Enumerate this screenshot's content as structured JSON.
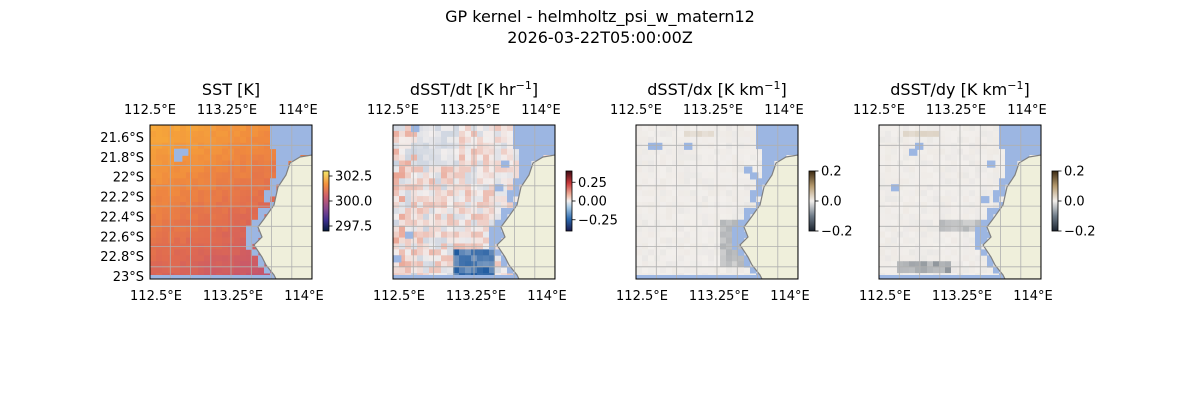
{
  "figure": {
    "title_line1": "GP kernel - helmholtz_psi_w_matern12",
    "title_line2": "2026-03-22T05:00:00Z"
  },
  "colors": {
    "land": "#efefdb",
    "water_mask": "#9cb6e2",
    "coastline": "#808080",
    "gridline": "#b0b0b0"
  },
  "chart_data": [
    {
      "type": "heatmap",
      "title": "SST [K]",
      "title_unit_sup": "",
      "xtick_labels": [
        "112.5°E",
        "113.25°E",
        "114°E"
      ],
      "ytick_labels": [
        "21.6°S",
        "21.8°S",
        "22°S",
        "22.2°S",
        "22.4°S",
        "22.6°S",
        "22.8°S",
        "23°S"
      ],
      "colorbar": {
        "cmap": "thermal",
        "range": [
          297.0,
          303.0
        ],
        "ticks": [
          302.5,
          300.0,
          297.5
        ],
        "tick_labels": [
          "302.5",
          "300.0",
          "297.5"
        ]
      }
    },
    {
      "type": "heatmap",
      "title": "dSST/dt [K hr",
      "title_unit_sup": "−1",
      "xtick_labels": [
        "112.5°E",
        "113.25°E",
        "114°E"
      ],
      "ytick_labels": [],
      "colorbar": {
        "cmap": "balance",
        "range": [
          -0.4,
          0.4
        ],
        "ticks": [
          0.25,
          0.0,
          -0.25
        ],
        "tick_labels": [
          "0.25",
          "0.00",
          "−0.25"
        ]
      }
    },
    {
      "type": "heatmap",
      "title": "dSST/dx [K km",
      "title_unit_sup": "−1",
      "xtick_labels": [
        "112.5°E",
        "113.25°E",
        "114°E"
      ],
      "ytick_labels": [],
      "colorbar": {
        "cmap": "diff",
        "range": [
          -0.2,
          0.2
        ],
        "ticks": [
          0.2,
          0.0,
          -0.2
        ],
        "tick_labels": [
          "0.2",
          "0.0",
          "−0.2"
        ]
      }
    },
    {
      "type": "heatmap",
      "title": "dSST/dy [K km",
      "title_unit_sup": "−1",
      "xtick_labels": [
        "112.5°E",
        "113.25°E",
        "114°E"
      ],
      "ytick_labels": [],
      "colorbar": {
        "cmap": "diff",
        "range": [
          -0.2,
          0.2
        ],
        "ticks": [
          0.2,
          0.0,
          -0.2
        ],
        "tick_labels": [
          "0.2",
          "0.0",
          "−0.2"
        ]
      }
    }
  ]
}
